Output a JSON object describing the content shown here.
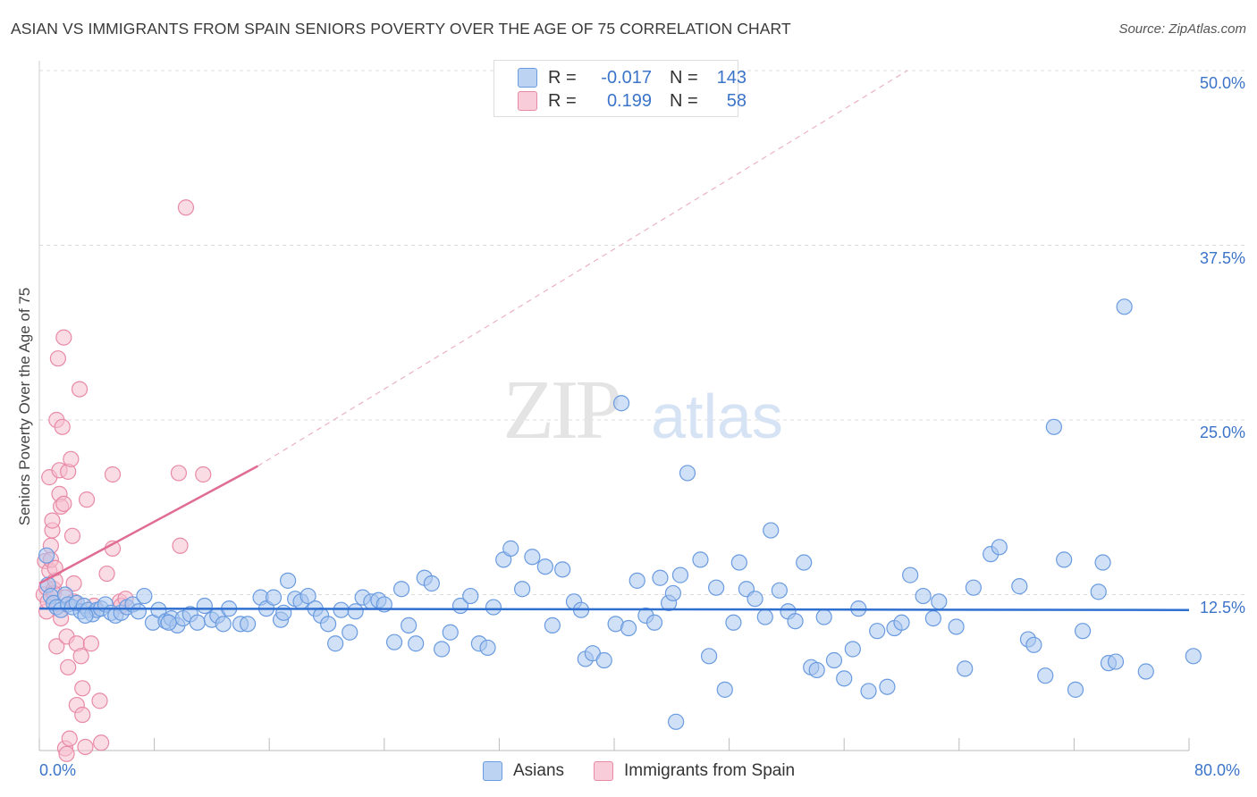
{
  "title": "ASIAN VS IMMIGRANTS FROM SPAIN SENIORS POVERTY OVER THE AGE OF 75 CORRELATION CHART",
  "source": "Source: ZipAtlas.com",
  "watermark": {
    "zip": "ZIP",
    "atlas": "atlas"
  },
  "legend": {
    "rows": [
      {
        "r_label": "R =",
        "r_value": "-0.017",
        "n_label": "N =",
        "n_value": "143",
        "color": "#a9c6ee",
        "border": "#5e95d8"
      },
      {
        "r_label": "R =",
        "r_value": "0.199",
        "n_label": "N =",
        "n_value": "58",
        "color": "#f6c0cf",
        "border": "#e57c9d"
      }
    ]
  },
  "bottom_legend": {
    "asians": "Asians",
    "spain": "Immigrants from Spain"
  },
  "colors": {
    "asian_fill": "#a9c6ee",
    "asian_stroke": "#6a9be0",
    "asian_line": "#2f6fcf",
    "spain_fill": "#f6c0cf",
    "spain_stroke": "#e88aa6",
    "spain_line": "#e06b93",
    "axis_text": "#3b74c9",
    "grid": "#dcdcdc"
  },
  "chart_data": {
    "type": "scatter",
    "title": "ASIAN VS IMMIGRANTS FROM SPAIN SENIORS POVERTY OVER THE AGE OF 75 CORRELATION CHART",
    "xlabel": "",
    "ylabel": "Seniors Poverty Over the Age of 75",
    "xlim": [
      0,
      80
    ],
    "ylim": [
      0,
      50
    ],
    "x_tick_labels": [
      "0.0%",
      "80.0%"
    ],
    "y_ticks": [
      12.5,
      25.0,
      37.5,
      50.0
    ],
    "y_tick_labels": [
      "12.5%",
      "25.0%",
      "37.5%",
      "50.0%"
    ],
    "grid": true,
    "legend_position": "top-center",
    "series": [
      {
        "name": "Asians",
        "r": -0.017,
        "n": 143,
        "trend": {
          "x": [
            0,
            80
          ],
          "y": [
            11.5,
            11.4
          ]
        },
        "points": [
          [
            0.5,
            15.3
          ],
          [
            0.6,
            13.2
          ],
          [
            0.8,
            12.4
          ],
          [
            1.0,
            11.9
          ],
          [
            1.2,
            11.6
          ],
          [
            1.5,
            11.4
          ],
          [
            1.8,
            12.5
          ],
          [
            2.0,
            11.8
          ],
          [
            2.3,
            11.6
          ],
          [
            2.6,
            11.9
          ],
          [
            2.9,
            11.3
          ],
          [
            3.1,
            11.7
          ],
          [
            3.4,
            11.4
          ],
          [
            3.7,
            11.1
          ],
          [
            4.0,
            11.4
          ],
          [
            4.3,
            11.5
          ],
          [
            4.6,
            11.8
          ],
          [
            5.0,
            11.2
          ],
          [
            5.3,
            11.0
          ],
          [
            5.7,
            11.2
          ],
          [
            6.1,
            11.6
          ],
          [
            6.5,
            11.8
          ],
          [
            6.9,
            11.3
          ],
          [
            7.3,
            12.4
          ],
          [
            7.9,
            10.5
          ],
          [
            8.3,
            11.4
          ],
          [
            8.8,
            10.6
          ],
          [
            9.2,
            10.8
          ],
          [
            9.6,
            10.3
          ],
          [
            10.0,
            10.8
          ],
          [
            10.5,
            11.1
          ],
          [
            11.0,
            10.5
          ],
          [
            11.5,
            11.7
          ],
          [
            12.0,
            10.7
          ],
          [
            12.4,
            11.0
          ],
          [
            12.8,
            10.4
          ],
          [
            13.2,
            11.5
          ],
          [
            14.0,
            10.4
          ],
          [
            14.5,
            10.4
          ],
          [
            15.4,
            12.3
          ],
          [
            15.8,
            11.5
          ],
          [
            16.3,
            12.3
          ],
          [
            16.8,
            10.7
          ],
          [
            17.3,
            13.5
          ],
          [
            17.8,
            12.2
          ],
          [
            18.2,
            12.0
          ],
          [
            18.7,
            12.4
          ],
          [
            19.2,
            11.5
          ],
          [
            19.6,
            11.0
          ],
          [
            20.1,
            10.4
          ],
          [
            20.6,
            9.0
          ],
          [
            21.0,
            11.4
          ],
          [
            21.6,
            9.8
          ],
          [
            22.0,
            11.3
          ],
          [
            22.5,
            12.3
          ],
          [
            23.1,
            12.0
          ],
          [
            23.6,
            12.1
          ],
          [
            24.0,
            11.8
          ],
          [
            24.7,
            9.1
          ],
          [
            25.2,
            12.9
          ],
          [
            25.7,
            10.3
          ],
          [
            26.2,
            9.0
          ],
          [
            26.8,
            13.7
          ],
          [
            27.3,
            13.3
          ],
          [
            28.0,
            8.6
          ],
          [
            28.6,
            9.8
          ],
          [
            29.3,
            11.7
          ],
          [
            30.0,
            12.4
          ],
          [
            30.6,
            9.0
          ],
          [
            31.2,
            8.7
          ],
          [
            31.6,
            11.6
          ],
          [
            32.3,
            15.0
          ],
          [
            32.8,
            15.8
          ],
          [
            33.6,
            12.9
          ],
          [
            34.3,
            15.2
          ],
          [
            35.2,
            14.5
          ],
          [
            35.7,
            10.3
          ],
          [
            36.4,
            14.3
          ],
          [
            37.2,
            12.0
          ],
          [
            37.7,
            11.4
          ],
          [
            38.0,
            7.9
          ],
          [
            38.5,
            8.3
          ],
          [
            39.3,
            7.8
          ],
          [
            40.1,
            10.4
          ],
          [
            40.5,
            26.2
          ],
          [
            41.0,
            10.1
          ],
          [
            41.6,
            13.5
          ],
          [
            42.2,
            11.0
          ],
          [
            42.8,
            10.5
          ],
          [
            43.2,
            13.7
          ],
          [
            43.8,
            11.9
          ],
          [
            44.1,
            12.6
          ],
          [
            44.6,
            13.9
          ],
          [
            45.1,
            21.2
          ],
          [
            46.0,
            15.0
          ],
          [
            46.6,
            8.1
          ],
          [
            47.1,
            13.0
          ],
          [
            47.7,
            5.7
          ],
          [
            48.3,
            10.5
          ],
          [
            48.7,
            14.8
          ],
          [
            49.2,
            12.9
          ],
          [
            49.8,
            12.2
          ],
          [
            50.5,
            10.9
          ],
          [
            50.9,
            17.1
          ],
          [
            51.5,
            12.8
          ],
          [
            52.1,
            11.3
          ],
          [
            52.6,
            10.6
          ],
          [
            53.2,
            14.8
          ],
          [
            53.7,
            7.3
          ],
          [
            54.1,
            7.1
          ],
          [
            54.6,
            10.9
          ],
          [
            55.3,
            7.8
          ],
          [
            56.0,
            6.5
          ],
          [
            56.6,
            8.6
          ],
          [
            57.0,
            11.5
          ],
          [
            57.7,
            5.6
          ],
          [
            58.3,
            9.9
          ],
          [
            59.0,
            5.9
          ],
          [
            59.5,
            10.1
          ],
          [
            60.0,
            10.5
          ],
          [
            60.6,
            13.9
          ],
          [
            61.5,
            12.4
          ],
          [
            62.2,
            10.8
          ],
          [
            62.6,
            12.0
          ],
          [
            63.8,
            10.2
          ],
          [
            64.4,
            7.2
          ],
          [
            65.0,
            13.0
          ],
          [
            66.2,
            15.4
          ],
          [
            66.8,
            15.9
          ],
          [
            68.2,
            13.1
          ],
          [
            68.8,
            9.3
          ],
          [
            69.2,
            8.9
          ],
          [
            70.0,
            6.7
          ],
          [
            70.6,
            24.5
          ],
          [
            71.3,
            15.0
          ],
          [
            72.1,
            5.7
          ],
          [
            72.6,
            9.9
          ],
          [
            73.7,
            12.7
          ],
          [
            74.0,
            14.8
          ],
          [
            74.4,
            7.6
          ],
          [
            74.9,
            7.7
          ],
          [
            75.5,
            33.1
          ],
          [
            77.0,
            7.0
          ],
          [
            80.3,
            8.1
          ],
          [
            44.3,
            3.4
          ],
          [
            17.0,
            11.2
          ],
          [
            3.2,
            11.0
          ],
          [
            9.0,
            10.5
          ]
        ]
      },
      {
        "name": "Immigrants from Spain",
        "r": 0.199,
        "n": 58,
        "trend": {
          "x": [
            0,
            15.2
          ],
          "y": [
            13.3,
            21.7
          ]
        },
        "trend_extended": {
          "x": [
            15.2,
            60.4
          ],
          "y": [
            21.7,
            50.0
          ]
        },
        "points": [
          [
            0.3,
            12.5
          ],
          [
            0.4,
            14.9
          ],
          [
            0.5,
            13.0
          ],
          [
            0.5,
            11.3
          ],
          [
            0.6,
            12.0
          ],
          [
            0.7,
            14.2
          ],
          [
            0.7,
            20.9
          ],
          [
            0.8,
            16.0
          ],
          [
            0.8,
            15.0
          ],
          [
            0.9,
            17.1
          ],
          [
            0.9,
            17.8
          ],
          [
            1.0,
            12.9
          ],
          [
            1.0,
            12.6
          ],
          [
            1.1,
            13.5
          ],
          [
            1.1,
            14.4
          ],
          [
            1.2,
            8.8
          ],
          [
            1.2,
            25.0
          ],
          [
            1.3,
            29.4
          ],
          [
            1.4,
            21.4
          ],
          [
            1.4,
            19.7
          ],
          [
            1.5,
            18.8
          ],
          [
            1.5,
            10.8
          ],
          [
            1.6,
            24.5
          ],
          [
            1.7,
            30.9
          ],
          [
            1.7,
            19.0
          ],
          [
            1.8,
            12.3
          ],
          [
            1.8,
            1.5
          ],
          [
            1.9,
            1.1
          ],
          [
            1.9,
            9.5
          ],
          [
            2.0,
            7.3
          ],
          [
            2.0,
            21.3
          ],
          [
            2.1,
            2.2
          ],
          [
            2.2,
            22.2
          ],
          [
            2.3,
            16.7
          ],
          [
            2.4,
            13.3
          ],
          [
            2.4,
            12.0
          ],
          [
            2.6,
            9.0
          ],
          [
            2.6,
            4.6
          ],
          [
            2.8,
            27.2
          ],
          [
            2.9,
            8.1
          ],
          [
            3.0,
            5.8
          ],
          [
            3.0,
            3.9
          ],
          [
            3.2,
            1.6
          ],
          [
            3.3,
            19.3
          ],
          [
            3.6,
            9.0
          ],
          [
            3.8,
            11.7
          ],
          [
            4.2,
            4.9
          ],
          [
            4.3,
            1.9
          ],
          [
            4.7,
            14.0
          ],
          [
            5.1,
            15.8
          ],
          [
            5.1,
            21.1
          ],
          [
            5.6,
            12.0
          ],
          [
            5.7,
            11.7
          ],
          [
            6.0,
            12.2
          ],
          [
            9.7,
            21.2
          ],
          [
            9.8,
            16.0
          ],
          [
            10.2,
            40.2
          ],
          [
            11.4,
            21.1
          ]
        ]
      }
    ]
  }
}
